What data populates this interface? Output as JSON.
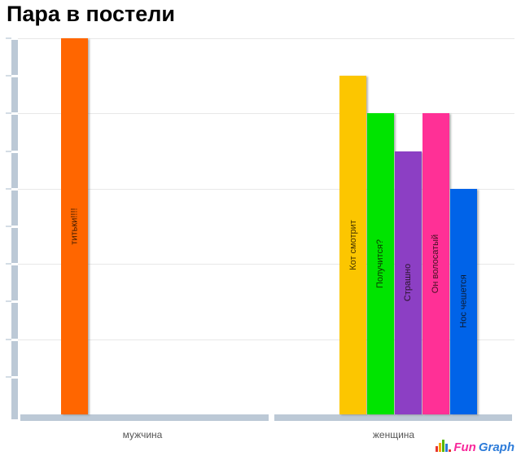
{
  "title": "Пара в постели",
  "chart_data": {
    "type": "bar",
    "title": "Пара в постели",
    "categories": [
      "мужчина",
      "женщина"
    ],
    "groups": [
      {
        "category": "мужчина",
        "bars": [
          {
            "label": "титьки!!!!",
            "value": 5.0,
            "color": "#ff6600"
          }
        ]
      },
      {
        "category": "женщина",
        "bars": [
          {
            "label": "Кот смотрит",
            "value": 4.5,
            "color": "#fcc600"
          },
          {
            "label": "Получится?",
            "value": 4.0,
            "color": "#00e400"
          },
          {
            "label": "Страшно",
            "value": 3.5,
            "color": "#8c3fc4"
          },
          {
            "label": "Он волосатый",
            "value": 4.0,
            "color": "#ff3096"
          },
          {
            "label": "Нос чешется",
            "value": 3.0,
            "color": "#0063e8"
          }
        ]
      }
    ],
    "xlabel": "",
    "ylabel": "",
    "ylim": [
      0,
      5
    ],
    "y_tick_step": 0.5,
    "gridline_step": 1,
    "numeric_tick_labels_visible": false,
    "legend": "none",
    "grid": "horizontal"
  },
  "axis": {
    "bar_color": "#bcc9d6",
    "gridline_color": "#e8e8e8",
    "category_label_color": "#555555"
  },
  "logo": {
    "fun": "Fun",
    "graph": "Graph",
    "fun_color": "#f8289b",
    "graph_color": "#2e7cd9",
    "icon_bar_colors": [
      "#e8352e",
      "#f6a800",
      "#59b800",
      "#2e7cd9"
    ]
  }
}
